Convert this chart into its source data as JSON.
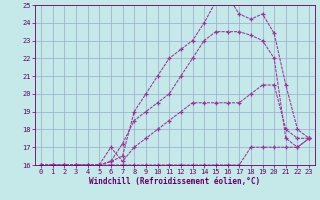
{
  "title": "",
  "xlabel": "Windchill (Refroidissement éolien,°C)",
  "ylabel": "",
  "xlim": [
    -0.5,
    23.5
  ],
  "ylim": [
    16,
    25
  ],
  "xticks": [
    0,
    1,
    2,
    3,
    4,
    5,
    6,
    7,
    8,
    9,
    10,
    11,
    12,
    13,
    14,
    15,
    16,
    17,
    18,
    19,
    20,
    21,
    22,
    23
  ],
  "yticks": [
    16,
    17,
    18,
    19,
    20,
    21,
    22,
    23,
    24,
    25
  ],
  "bg_color": "#c5e8e8",
  "line_color": "#993399",
  "grid_color": "#99aacc",
  "lines": [
    {
      "x": [
        0,
        1,
        2,
        3,
        4,
        5,
        6,
        7,
        8,
        9,
        10,
        11,
        12,
        13,
        14,
        15,
        16,
        17,
        18,
        19,
        20,
        21,
        22,
        23
      ],
      "y": [
        16,
        16,
        16,
        16,
        16,
        16,
        16,
        16,
        16,
        16,
        16,
        16,
        16,
        16,
        16,
        16,
        16,
        16,
        17,
        17,
        17,
        17,
        17,
        17.5
      ]
    },
    {
      "x": [
        0,
        1,
        2,
        3,
        4,
        5,
        6,
        7,
        8,
        9,
        10,
        11,
        12,
        13,
        14,
        15,
        16,
        17,
        18,
        19,
        20,
        21,
        22,
        23
      ],
      "y": [
        16,
        16,
        16,
        16,
        16,
        16,
        17,
        16.2,
        17,
        17.5,
        18,
        18.5,
        19,
        19.5,
        19.5,
        19.5,
        19.5,
        19.5,
        20,
        20.5,
        20.5,
        18,
        17.5,
        17.5
      ]
    },
    {
      "x": [
        0,
        1,
        2,
        3,
        4,
        5,
        6,
        7,
        8,
        9,
        10,
        11,
        12,
        13,
        14,
        15,
        16,
        17,
        18,
        19,
        20,
        21,
        22,
        23
      ],
      "y": [
        16,
        16,
        16,
        16,
        16,
        16,
        16.2,
        17.2,
        18.5,
        19,
        19.5,
        20,
        21,
        22,
        23,
        23.5,
        23.5,
        23.5,
        23.3,
        23,
        22,
        17.5,
        17,
        17.5
      ]
    },
    {
      "x": [
        0,
        1,
        2,
        3,
        4,
        5,
        6,
        7,
        8,
        9,
        10,
        11,
        12,
        13,
        14,
        15,
        16,
        17,
        18,
        19,
        20,
        21,
        22,
        23
      ],
      "y": [
        16,
        16,
        16,
        16,
        16,
        16,
        16.2,
        16.5,
        19,
        20,
        21,
        22,
        22.5,
        23,
        24,
        25.2,
        25.5,
        24.5,
        24.2,
        24.5,
        23.4,
        20.5,
        18,
        17.5
      ]
    }
  ]
}
